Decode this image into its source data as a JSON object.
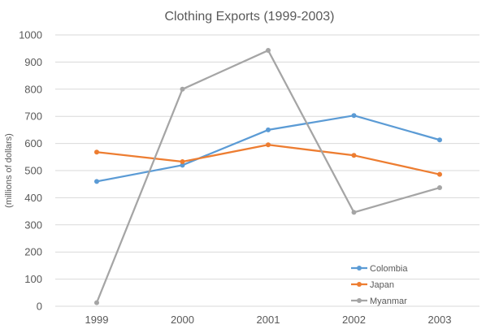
{
  "chart_data": {
    "type": "line",
    "title": "Clothing Exports (1999-2003)",
    "xlabel": "",
    "ylabel": "(millions of dollars)",
    "categories": [
      "1999",
      "2000",
      "2001",
      "2002",
      "2003"
    ],
    "ylim": [
      0,
      1000
    ],
    "yticks": [
      0,
      100,
      200,
      300,
      400,
      500,
      600,
      700,
      800,
      900,
      1000
    ],
    "grid": true,
    "legend_position": "bottom-right",
    "series": [
      {
        "name": "Colombia",
        "color": "#5b9bd5",
        "values": [
          460,
          520,
          650,
          703,
          613
        ]
      },
      {
        "name": "Japan",
        "color": "#ed7d31",
        "values": [
          568,
          533,
          595,
          556,
          486
        ]
      },
      {
        "name": "Myanmar",
        "color": "#a5a5a5",
        "values": [
          13,
          800,
          943,
          346,
          437
        ]
      }
    ]
  }
}
